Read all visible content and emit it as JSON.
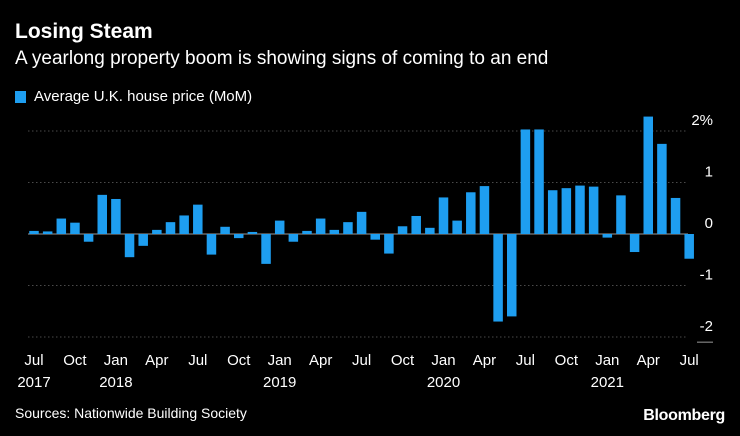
{
  "colors": {
    "bar": "#1e9ef0",
    "grid": "#4a4a4a",
    "background": "#000000"
  },
  "source": "Sources: Nationwide Building Society",
  "brand": "Bloomberg",
  "chart_data": {
    "type": "bar",
    "title": "Losing Steam",
    "subtitle": "A yearlong property boom is showing signs of coming to an end",
    "legend": [
      "Average U.K. house price (MoM)"
    ],
    "legend_position": "top-left",
    "xlabel": "",
    "ylabel": "",
    "ylim": [
      -2.2,
      2.4
    ],
    "yticks": [
      2,
      1,
      0,
      -1,
      -2
    ],
    "ytick_labels": [
      "2%",
      "1",
      "0",
      "-1",
      "-2"
    ],
    "grid": true,
    "categories": [
      "2017-07",
      "2017-08",
      "2017-09",
      "2017-10",
      "2017-11",
      "2017-12",
      "2018-01",
      "2018-02",
      "2018-03",
      "2018-04",
      "2018-05",
      "2018-06",
      "2018-07",
      "2018-08",
      "2018-09",
      "2018-10",
      "2018-11",
      "2018-12",
      "2019-01",
      "2019-02",
      "2019-03",
      "2019-04",
      "2019-05",
      "2019-06",
      "2019-07",
      "2019-08",
      "2019-09",
      "2019-10",
      "2019-11",
      "2019-12",
      "2020-01",
      "2020-02",
      "2020-03",
      "2020-04",
      "2020-05",
      "2020-06",
      "2020-07",
      "2020-08",
      "2020-09",
      "2020-10",
      "2020-11",
      "2020-12",
      "2021-01",
      "2021-02",
      "2021-03",
      "2021-04",
      "2021-05",
      "2021-06",
      "2021-07"
    ],
    "values": [
      0.06,
      0.05,
      0.3,
      0.22,
      -0.15,
      0.76,
      0.68,
      -0.45,
      -0.23,
      0.08,
      0.23,
      0.36,
      0.57,
      -0.4,
      0.14,
      -0.08,
      0.04,
      -0.58,
      0.26,
      -0.15,
      0.06,
      0.3,
      0.08,
      0.23,
      0.43,
      -0.11,
      -0.38,
      0.15,
      0.35,
      0.12,
      0.71,
      0.26,
      0.81,
      0.93,
      -1.7,
      -1.6,
      2.03,
      2.03,
      0.85,
      0.89,
      0.94,
      0.92,
      -0.07,
      0.75,
      -0.35,
      2.28,
      1.75,
      0.7,
      -0.48
    ],
    "x_tick_labels": [
      {
        "index": 0,
        "month": "Jul",
        "year": "2017"
      },
      {
        "index": 3,
        "month": "Oct",
        "year": ""
      },
      {
        "index": 6,
        "month": "Jan",
        "year": "2018"
      },
      {
        "index": 9,
        "month": "Apr",
        "year": ""
      },
      {
        "index": 12,
        "month": "Jul",
        "year": ""
      },
      {
        "index": 15,
        "month": "Oct",
        "year": ""
      },
      {
        "index": 18,
        "month": "Jan",
        "year": "2019"
      },
      {
        "index": 21,
        "month": "Apr",
        "year": ""
      },
      {
        "index": 24,
        "month": "Jul",
        "year": ""
      },
      {
        "index": 27,
        "month": "Oct",
        "year": ""
      },
      {
        "index": 30,
        "month": "Jan",
        "year": "2020"
      },
      {
        "index": 33,
        "month": "Apr",
        "year": ""
      },
      {
        "index": 36,
        "month": "Jul",
        "year": ""
      },
      {
        "index": 39,
        "month": "Oct",
        "year": ""
      },
      {
        "index": 42,
        "month": "Jan",
        "year": "2021"
      },
      {
        "index": 45,
        "month": "Apr",
        "year": ""
      },
      {
        "index": 48,
        "month": "Jul",
        "year": ""
      }
    ]
  }
}
